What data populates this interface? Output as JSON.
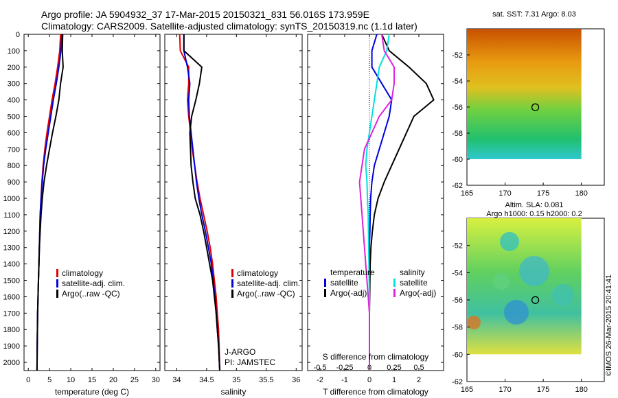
{
  "header": {
    "line1": "Argo profile: JA 5904932_37 17-Mar-2015 20150321_831 56.016S 173.959E",
    "line2": "Climatology: CARS2009. Satellite-adjusted climatology: synTS_20150319.nc (1.1d later)"
  },
  "colors": {
    "climatology": "#e00000",
    "satellite": "#0000dd",
    "argo": "#000000",
    "sat_s": "#00e0e0",
    "argo_s": "#e020e0"
  },
  "chart_data": [
    {
      "type": "line",
      "id": "temperature",
      "xlabel": "temperature (deg C)",
      "ylabel": "",
      "xlim": [
        -1,
        31
      ],
      "ylim": [
        2050,
        0
      ],
      "xticks": [
        0,
        5,
        10,
        15,
        20,
        25,
        30
      ],
      "yticks": [
        0,
        100,
        200,
        300,
        400,
        500,
        600,
        700,
        800,
        900,
        1000,
        1100,
        1200,
        1300,
        1400,
        1500,
        1600,
        1700,
        1800,
        1900,
        2000
      ],
      "legend": [
        "climatology",
        "satellite-adj. clim.",
        "Argo(..raw -QC)"
      ],
      "series": [
        {
          "name": "climatology",
          "key": "climatology",
          "x": [
            7.6,
            7.4,
            6.9,
            6.3,
            5.6,
            5.0,
            4.4,
            3.9,
            3.5,
            3.2,
            3.0,
            2.8,
            2.7,
            2.6,
            2.5,
            2.4,
            2.3,
            2.2,
            2.15,
            2.1,
            2.05
          ],
          "y": [
            0,
            100,
            200,
            300,
            400,
            500,
            600,
            700,
            800,
            900,
            1000,
            1100,
            1200,
            1300,
            1400,
            1500,
            1600,
            1700,
            1800,
            1900,
            2050
          ]
        },
        {
          "name": "satellite-adj. clim.",
          "key": "satellite",
          "x": [
            7.9,
            7.7,
            7.2,
            6.6,
            5.9,
            5.3,
            4.7,
            4.1,
            3.6,
            3.3,
            3.0,
            2.8,
            2.7,
            2.6,
            2.5,
            2.4,
            2.3,
            2.2,
            2.15,
            2.1,
            2.05
          ],
          "y": [
            0,
            100,
            200,
            300,
            400,
            500,
            600,
            700,
            800,
            900,
            1000,
            1100,
            1200,
            1300,
            1400,
            1500,
            1600,
            1700,
            1800,
            1900,
            2050
          ]
        },
        {
          "name": "Argo(..raw -QC)",
          "key": "argo",
          "x": [
            8.1,
            8.0,
            8.2,
            7.6,
            7.2,
            6.5,
            5.7,
            5.0,
            4.3,
            3.7,
            3.3,
            3.0,
            2.8,
            2.6,
            2.5,
            2.4,
            2.3,
            2.2,
            2.15,
            2.1,
            2.05
          ],
          "y": [
            0,
            100,
            200,
            300,
            400,
            500,
            600,
            700,
            800,
            900,
            1000,
            1100,
            1200,
            1300,
            1400,
            1500,
            1600,
            1700,
            1800,
            1900,
            2050
          ]
        }
      ]
    },
    {
      "type": "line",
      "id": "salinity",
      "xlabel": "salinity",
      "ylabel": "",
      "xlim": [
        33.8,
        36.1
      ],
      "ylim": [
        2050,
        0
      ],
      "xticks": [
        34,
        34.5,
        35,
        35.5,
        36
      ],
      "legend": [
        "climatology",
        "satellite-adj. clim.",
        "Argo(..raw -QC)"
      ],
      "annotation": [
        "J-ARGO",
        "PI: JAMSTEC"
      ],
      "series": [
        {
          "name": "climatology",
          "key": "climatology",
          "x": [
            34.05,
            34.06,
            34.2,
            34.2,
            34.18,
            34.2,
            34.23,
            34.26,
            34.3,
            34.34,
            34.39,
            34.45,
            34.51,
            34.56,
            34.6,
            34.63,
            34.66,
            34.68,
            34.7,
            34.71,
            34.72
          ],
          "y": [
            0,
            100,
            200,
            300,
            400,
            500,
            600,
            700,
            800,
            900,
            1000,
            1100,
            1200,
            1300,
            1400,
            1500,
            1600,
            1700,
            1800,
            1900,
            2050
          ]
        },
        {
          "name": "satellite-adj. clim.",
          "key": "satellite",
          "x": [
            34.12,
            34.12,
            34.18,
            34.22,
            34.2,
            34.21,
            34.24,
            34.27,
            34.3,
            34.33,
            34.37,
            34.42,
            34.48,
            34.53,
            34.58,
            34.61,
            34.64,
            34.66,
            34.68,
            34.7,
            34.72
          ],
          "y": [
            0,
            100,
            200,
            300,
            400,
            500,
            600,
            700,
            800,
            900,
            1000,
            1100,
            1200,
            1300,
            1400,
            1500,
            1600,
            1700,
            1800,
            1900,
            2050
          ]
        },
        {
          "name": "Argo(..raw -QC)",
          "key": "argo",
          "x": [
            34.12,
            34.12,
            34.42,
            34.38,
            34.32,
            34.25,
            34.22,
            34.23,
            34.24,
            34.27,
            34.31,
            34.39,
            34.45,
            34.5,
            34.55,
            34.6,
            34.63,
            34.66,
            34.68,
            34.7,
            34.72
          ],
          "y": [
            0,
            100,
            200,
            300,
            400,
            500,
            600,
            700,
            800,
            900,
            1000,
            1100,
            1200,
            1300,
            1400,
            1500,
            1600,
            1700,
            1800,
            1900,
            2050
          ]
        }
      ]
    },
    {
      "type": "line",
      "id": "difference",
      "xlabel": "T difference from climatology",
      "ylabel": "",
      "xlim": [
        -2.5,
        3
      ],
      "ylim": [
        2050,
        0
      ],
      "xticks": [
        -2,
        -1,
        0,
        1,
        2
      ],
      "top_xlabel": "S difference from climatology",
      "top_xticks": [
        "-0.5",
        "-0.25",
        "0",
        "0.25",
        "0.5"
      ],
      "top_xtick_pos": [
        -2,
        -1,
        0,
        1,
        2
      ],
      "legend_left_title": "temperature",
      "legend_right_title": "salinity",
      "legend": [
        "satellite",
        "Argo(-adj)",
        "satellite",
        "Argo(-adj)"
      ],
      "series": [
        {
          "name": "satellite",
          "group": "temperature",
          "key": "satellite",
          "x": [
            0.3,
            0.1,
            0.1,
            0.5,
            0.9,
            0.8,
            0.6,
            0.4,
            0.2,
            0.1,
            0.05,
            0.03,
            0.02,
            0.0,
            0.0,
            0.0,
            0.0,
            0.0,
            0.0,
            0.0,
            0.0
          ],
          "y": [
            0,
            100,
            200,
            300,
            400,
            500,
            600,
            700,
            800,
            900,
            1000,
            1100,
            1200,
            1300,
            1400,
            1500,
            1600,
            1700,
            1800,
            1900,
            2050
          ]
        },
        {
          "name": "Argo(-adj)",
          "group": "temperature",
          "key": "argo",
          "x": [
            0.5,
            0.8,
            1.6,
            2.3,
            2.6,
            1.8,
            1.5,
            1.2,
            0.9,
            0.6,
            0.35,
            0.2,
            0.12,
            0.06,
            0.03,
            0.02,
            0.01,
            0.0,
            0.0,
            0.0,
            0.0
          ],
          "y": [
            0,
            100,
            200,
            300,
            400,
            500,
            600,
            700,
            800,
            900,
            1000,
            1100,
            1200,
            1300,
            1400,
            1500,
            1600,
            1700,
            1800,
            1900,
            2050
          ]
        },
        {
          "name": "satellite",
          "group": "salinity",
          "key": "sat_s",
          "x": [
            0.8,
            0.7,
            0.4,
            0.3,
            0.2,
            0.1,
            0.0,
            -0.1,
            -0.15,
            -0.1,
            -0.08,
            -0.05,
            -0.04,
            -0.03,
            -0.02,
            -0.01,
            0.0,
            0.0,
            0.0,
            0.0,
            0.0
          ],
          "y": [
            0,
            100,
            200,
            300,
            400,
            500,
            600,
            700,
            800,
            900,
            1000,
            1100,
            1200,
            1300,
            1400,
            1500,
            1600,
            1700,
            1800,
            1900,
            2050
          ]
        },
        {
          "name": "Argo(-adj)",
          "group": "salinity",
          "key": "argo_s",
          "x": [
            0.5,
            0.6,
            1.0,
            1.0,
            0.9,
            0.4,
            0.1,
            -0.2,
            -0.3,
            -0.4,
            -0.35,
            -0.3,
            -0.25,
            -0.2,
            -0.15,
            -0.1,
            -0.05,
            0.0,
            0.0,
            0.0,
            0.0
          ],
          "y": [
            0,
            100,
            200,
            300,
            400,
            500,
            600,
            700,
            800,
            900,
            1000,
            1100,
            1200,
            1300,
            1400,
            1500,
            1600,
            1700,
            1800,
            1900,
            2050
          ]
        }
      ]
    },
    {
      "type": "heatmap",
      "id": "sst-map",
      "title": "sat. SST: 7.31  Argo: 8.03",
      "xlim": [
        165,
        183
      ],
      "ylim": [
        -62,
        -50
      ],
      "xticks": [
        165,
        170,
        175,
        180
      ],
      "yticks": [
        -52,
        -54,
        -56,
        -58,
        -60,
        -62
      ],
      "float_position": [
        173.959,
        -56.016
      ]
    },
    {
      "type": "heatmap",
      "id": "sla-map",
      "title": "Altim. SLA: 0.081",
      "subtitle": "Argo h1000: 0.15 h2000: 0.2",
      "xlim": [
        165,
        183
      ],
      "ylim": [
        -62,
        -50
      ],
      "xticks": [
        165,
        170,
        175,
        180
      ],
      "yticks": [
        -52,
        -54,
        -56,
        -58,
        -60,
        -62
      ],
      "float_position": [
        173.959,
        -56.016
      ]
    }
  ],
  "watermark": "©IMOS 26-Mar-2015 20:41:41"
}
